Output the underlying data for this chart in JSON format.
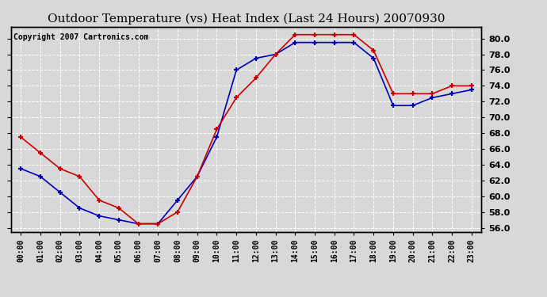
{
  "title": "Outdoor Temperature (vs) Heat Index (Last 24 Hours) 20070930",
  "copyright_text": "Copyright 2007 Cartronics.com",
  "hours": [
    0,
    1,
    2,
    3,
    4,
    5,
    6,
    7,
    8,
    9,
    10,
    11,
    12,
    13,
    14,
    15,
    16,
    17,
    18,
    19,
    20,
    21,
    22,
    23
  ],
  "x_labels": [
    "00:00",
    "01:00",
    "02:00",
    "03:00",
    "04:00",
    "05:00",
    "06:00",
    "07:00",
    "08:00",
    "09:00",
    "10:00",
    "11:00",
    "12:00",
    "13:00",
    "14:00",
    "15:00",
    "16:00",
    "17:00",
    "18:00",
    "19:00",
    "20:00",
    "21:00",
    "22:00",
    "23:00"
  ],
  "blue_data": [
    63.5,
    62.5,
    60.5,
    58.5,
    57.5,
    57.0,
    56.5,
    56.5,
    59.5,
    62.5,
    67.5,
    76.0,
    77.5,
    78.0,
    79.5,
    79.5,
    79.5,
    79.5,
    77.5,
    71.5,
    71.5,
    72.5,
    73.0,
    73.5
  ],
  "red_data": [
    67.5,
    65.5,
    63.5,
    62.5,
    59.5,
    58.5,
    56.5,
    56.5,
    58.0,
    62.5,
    68.5,
    72.5,
    75.0,
    78.0,
    80.5,
    80.5,
    80.5,
    80.5,
    78.5,
    73.0,
    73.0,
    73.0,
    74.0,
    74.0
  ],
  "ylim": [
    55.5,
    81.5
  ],
  "yticks": [
    56.0,
    58.0,
    60.0,
    62.0,
    64.0,
    66.0,
    68.0,
    70.0,
    72.0,
    74.0,
    76.0,
    78.0,
    80.0
  ],
  "blue_color": "#0000bb",
  "red_color": "#cc0000",
  "bg_color": "#d8d8d8",
  "plot_bg": "#d8d8d8",
  "grid_color": "#ffffff",
  "title_fontsize": 11,
  "copyright_fontsize": 7,
  "tick_fontsize": 8,
  "xtick_fontsize": 7
}
